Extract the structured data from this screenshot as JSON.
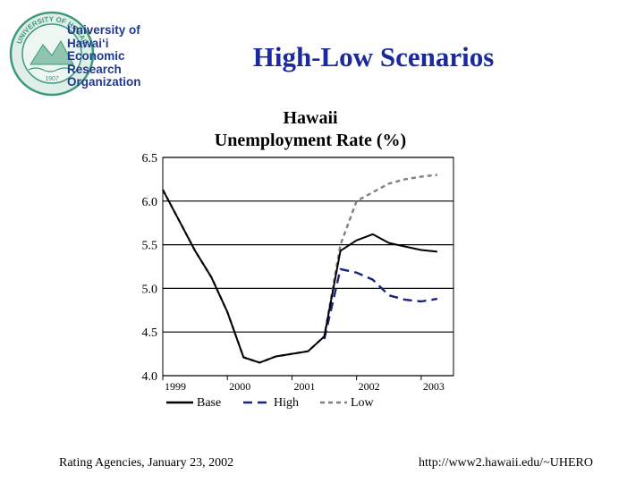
{
  "slide": {
    "title": "High-Low Scenarios",
    "footer_left": "Rating Agencies, January 23, 2002",
    "footer_right": "http://www2.hawaii.edu/~UHERO"
  },
  "logo": {
    "lines": [
      "University of",
      "Hawai‘i",
      "Economic",
      "Research",
      "Organization"
    ],
    "seal_text": "UNIVERSITY OF HAWAII",
    "seal_year": "1907",
    "accent_color": "#1f3a8c",
    "seal_color": "#3c9a7a"
  },
  "chart_data": {
    "type": "line",
    "title": "Hawaii",
    "subtitle": "Unemployment Rate (%)",
    "ylim": [
      4.0,
      6.5
    ],
    "y_ticks": [
      "4.0",
      "4.5",
      "5.0",
      "5.5",
      "6.0",
      "6.5"
    ],
    "x_ticks": [
      "1999",
      "2000",
      "2001",
      "2002",
      "2003"
    ],
    "xlim": [
      1999.0,
      2003.5
    ],
    "grid": "horizontal",
    "legend_position": "bottom",
    "x": [
      1999.0,
      1999.25,
      1999.5,
      1999.75,
      2000.0,
      2000.25,
      2000.5,
      2000.75,
      2001.0,
      2001.25,
      2001.5,
      2001.75,
      2002.0,
      2002.25,
      2002.5,
      2002.75,
      2003.0,
      2003.25
    ],
    "series": [
      {
        "name": "Base",
        "color": "#000000",
        "dash": "solid",
        "values": [
          6.13,
          5.78,
          5.43,
          5.13,
          4.73,
          4.21,
          4.15,
          4.22,
          4.25,
          4.28,
          4.45,
          5.43,
          5.55,
          5.62,
          5.52,
          5.48,
          5.44,
          5.42
        ]
      },
      {
        "name": "High",
        "color": "#1a237e",
        "dash": "long",
        "values": [
          null,
          null,
          null,
          null,
          null,
          null,
          null,
          null,
          null,
          null,
          4.42,
          5.22,
          5.18,
          5.1,
          4.92,
          4.87,
          4.85,
          4.88
        ]
      },
      {
        "name": "Low",
        "color": "#808080",
        "dash": "short",
        "values": [
          6.13,
          5.78,
          5.43,
          5.13,
          4.73,
          4.21,
          4.15,
          4.22,
          4.25,
          4.28,
          4.45,
          5.5,
          6.0,
          6.1,
          6.2,
          6.25,
          6.28,
          6.3
        ]
      }
    ]
  }
}
